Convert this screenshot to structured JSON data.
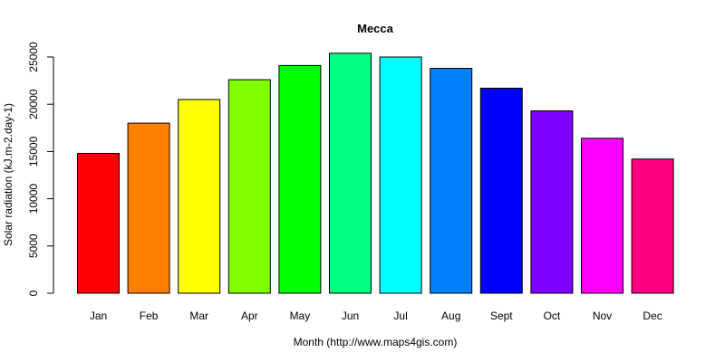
{
  "chart_data": {
    "type": "bar",
    "title": "Mecca",
    "xlabel": "Month (http://www.maps4gis.com)",
    "ylabel": "Solar radiation (kJ.m-2.day-1)",
    "ylim": [
      0,
      26000
    ],
    "yticks": [
      0,
      5000,
      10000,
      15000,
      20000,
      25000
    ],
    "grid": false,
    "categories": [
      "Jan",
      "Feb",
      "Mar",
      "Apr",
      "May",
      "Jun",
      "Jul",
      "Aug",
      "Sept",
      "Oct",
      "Nov",
      "Dec"
    ],
    "values": [
      14800,
      18000,
      20500,
      22600,
      24100,
      25400,
      25000,
      23800,
      21700,
      19300,
      16400,
      14200
    ],
    "colors": [
      "#ff0000",
      "#ff8000",
      "#ffff00",
      "#80ff00",
      "#00ff00",
      "#00ff80",
      "#00ffff",
      "#0080ff",
      "#0000ff",
      "#8000ff",
      "#ff00ff",
      "#ff0080"
    ]
  }
}
